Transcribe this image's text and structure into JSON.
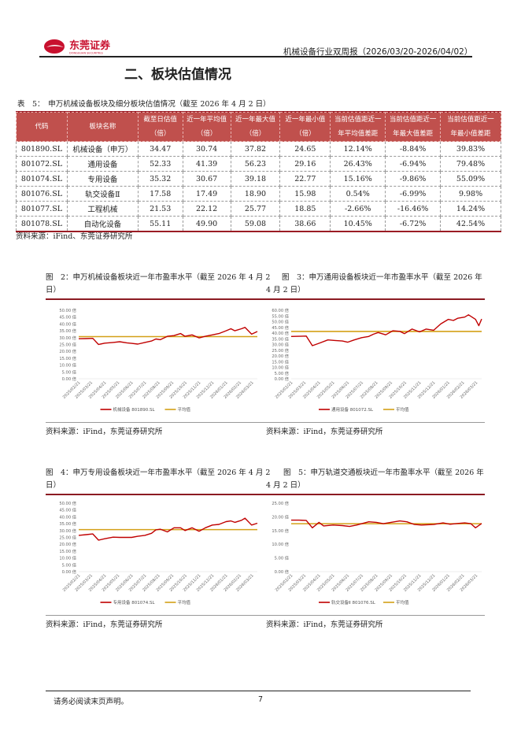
{
  "header": {
    "logo_text": "东莞证券",
    "logo_subtext": "DONGGUAN SECURITIES",
    "report_title": "机械设备行业双周报（2026/03/20-2026/04/02）"
  },
  "section_title": "二、板块估值情况",
  "table": {
    "caption": "表　5：　申万机械设备板块及细分板块估值情况（截至 2026 年 4 月 2 日）",
    "headers": [
      [
        "代码"
      ],
      [
        "板块名称"
      ],
      [
        "截至日估值",
        "（倍）"
      ],
      [
        "近一年平均值",
        "（倍）"
      ],
      [
        "近一年最大值",
        "（倍）"
      ],
      [
        "近一年最小值",
        "（倍）"
      ],
      [
        "当前估值距近一",
        "年平均值差距"
      ],
      [
        "当前估值距近一",
        "年最大值差距"
      ],
      [
        "当前估值距近一",
        "年最小值差距"
      ]
    ],
    "rows": [
      [
        "801890.SL",
        "机械设备（申万）",
        "34.47",
        "30.74",
        "37.82",
        "24.65",
        "12.14%",
        "-8.84%",
        "39.83%"
      ],
      [
        "801072.SL",
        "通用设备",
        "52.33",
        "41.39",
        "56.23",
        "29.16",
        "26.43%",
        "-6.94%",
        "79.48%"
      ],
      [
        "801074.SL",
        "专用设备",
        "35.32",
        "30.67",
        "39.18",
        "22.77",
        "15.16%",
        "-9.86%",
        "55.09%"
      ],
      [
        "801076.SL",
        "轨交设备Ⅱ",
        "17.58",
        "17.49",
        "18.90",
        "15.98",
        "0.54%",
        "-6.99%",
        "9.98%"
      ],
      [
        "801077.SL",
        "工程机械",
        "21.53",
        "22.12",
        "25.77",
        "18.85",
        "-2.66%",
        "-16.46%",
        "14.24%"
      ],
      [
        "801078.SL",
        "自动化设备",
        "55.11",
        "49.90",
        "59.08",
        "38.66",
        "10.45%",
        "-6.72%",
        "42.54%"
      ]
    ],
    "source": "资料来源：iFind、东莞证券研究所"
  },
  "figures": [
    {
      "caption": "图　2：申万机械设备板块近一年市盈率水平（截至 2026 年 4 月 2 日）",
      "source": "资料来源：iFind，东莞证券研究所"
    },
    {
      "caption": "图　3：申万通用设备板块近一年市盈率水平（截至 2026 年 4 月 2 日）",
      "source": "资料来源：iFind，东莞证券研究所"
    },
    {
      "caption": "图　4：申万专用设备板块近一年市盈率水平（截至 2026 年 4 月 2 日）",
      "source": "资料来源：iFind，东莞证券研究所"
    },
    {
      "caption": "图　5：申万轨道交通板块近一年市盈率水平（截至 2026 年 4 月 2 日）",
      "source": "资料来源：iFind，东莞证券研究所"
    }
  ],
  "colors": {
    "series": "#c00000",
    "average": "#d4a017",
    "table_header": "#c0504d",
    "rule": "#8b1a22"
  },
  "chart_data": [
    {
      "type": "line",
      "x_tick_labels": [
        "2025/02/21",
        "2025/03/21",
        "2025/04/21",
        "2025/05/21",
        "2025/06/21",
        "2025/07/21",
        "2025/08/21",
        "2025/09/21",
        "2025/10/21",
        "2025/11/21",
        "2025/12/21",
        "2026/01/21",
        "2026/02/21",
        "2026/03/21"
      ],
      "y_tick_labels": [
        "0.00 倍",
        "5.00 倍",
        "10.00 倍",
        "15.00 倍",
        "20.00 倍",
        "25.00 倍",
        "30.00 倍",
        "35.00 倍",
        "40.00 倍",
        "45.00 倍",
        "50.00 倍"
      ],
      "ylim": [
        0,
        50
      ],
      "grid": false,
      "legend": "bottom",
      "series": [
        {
          "name": "机械设备 801890.SL",
          "x": [
            "2025/02/21",
            "2025/03/10",
            "2025/03/25",
            "2025/04/07",
            "2025/04/21",
            "2025/05/10",
            "2025/05/25",
            "2025/06/10",
            "2025/06/21",
            "2025/07/05",
            "2025/07/21",
            "2025/08/05",
            "2025/08/15",
            "2025/08/25",
            "2025/09/10",
            "2025/09/25",
            "2025/10/10",
            "2025/10/20",
            "2025/11/05",
            "2025/11/21",
            "2025/12/05",
            "2025/12/21",
            "2026/01/05",
            "2026/01/21",
            "2026/02/01",
            "2026/02/10",
            "2026/02/25",
            "2026/03/05",
            "2026/03/20",
            "2026/04/02"
          ],
          "values": [
            29.2,
            29.3,
            29.5,
            25,
            26,
            26.5,
            27,
            26.2,
            25.8,
            25.3,
            26.5,
            27.5,
            29,
            28.5,
            31,
            31.5,
            33,
            31,
            32,
            29.8,
            31,
            32,
            33,
            35,
            36.5,
            35,
            36.5,
            37.5,
            32.5,
            34.47
          ]
        },
        {
          "name": "平均值",
          "values": [
            30.74
          ]
        }
      ]
    },
    {
      "type": "line",
      "x_tick_labels": [
        "2025/02/21",
        "2025/03/21",
        "2025/04/21",
        "2025/05/21",
        "2025/06/21",
        "2025/07/21",
        "2025/08/21",
        "2025/09/21",
        "2025/10/21",
        "2025/11/21",
        "2025/12/21",
        "2026/01/21",
        "2026/02/21",
        "2026/03/21"
      ],
      "y_tick_labels": [
        "0.00 倍",
        "5.00 倍",
        "10.00 倍",
        "15.00 倍",
        "20.00 倍",
        "25.00 倍",
        "30.00 倍",
        "35.00 倍",
        "40.00 倍",
        "45.00 倍",
        "50.00 倍",
        "55.00 倍",
        "60.00 倍"
      ],
      "ylim": [
        0,
        60
      ],
      "grid": false,
      "legend": "bottom",
      "series": [
        {
          "name": "通用设备 801072.SL",
          "x": [
            "2025/02/21",
            "2025/03/10",
            "2025/03/25",
            "2025/04/07",
            "2025/04/21",
            "2025/05/10",
            "2025/05/25",
            "2025/06/10",
            "2025/06/21",
            "2025/07/05",
            "2025/07/21",
            "2025/08/05",
            "2025/08/15",
            "2025/08/25",
            "2025/09/10",
            "2025/09/25",
            "2025/10/10",
            "2025/10/20",
            "2025/11/05",
            "2025/11/21",
            "2025/12/05",
            "2025/12/21",
            "2026/01/05",
            "2026/01/21",
            "2026/02/01",
            "2026/02/10",
            "2026/02/25",
            "2026/03/05",
            "2026/03/20",
            "2026/03/27",
            "2026/04/02"
          ],
          "values": [
            37,
            37.2,
            37.4,
            29,
            31,
            34,
            33.5,
            33,
            32,
            34,
            36,
            37,
            39,
            40.5,
            38.5,
            42,
            41.5,
            39.5,
            43.5,
            41,
            43.5,
            42.5,
            48,
            52,
            51,
            53,
            54,
            56,
            52,
            46.5,
            52.33
          ]
        },
        {
          "name": "平均值",
          "values": [
            41.39
          ]
        }
      ]
    },
    {
      "type": "line",
      "x_tick_labels": [
        "2025/02/21",
        "2025/03/21",
        "2025/04/21",
        "2025/05/21",
        "2025/06/21",
        "2025/07/21",
        "2025/08/21",
        "2025/09/21",
        "2025/10/21",
        "2025/11/21",
        "2025/12/21",
        "2026/01/21",
        "2026/02/21",
        "2026/03/21"
      ],
      "y_tick_labels": [
        "0.00 倍",
        "5.00 倍",
        "10.00 倍",
        "15.00 倍",
        "20.00 倍",
        "25.00 倍",
        "30.00 倍",
        "35.00 倍",
        "40.00 倍",
        "45.00 倍",
        "50.00 倍"
      ],
      "ylim": [
        0,
        50
      ],
      "grid": false,
      "legend": "bottom",
      "series": [
        {
          "name": "专用设备 801074.SL",
          "x": [
            "2025/02/21",
            "2025/03/10",
            "2025/03/25",
            "2025/04/07",
            "2025/04/21",
            "2025/05/10",
            "2025/05/25",
            "2025/06/10",
            "2025/06/21",
            "2025/07/05",
            "2025/07/21",
            "2025/08/05",
            "2025/08/15",
            "2025/08/25",
            "2025/09/10",
            "2025/09/25",
            "2025/10/10",
            "2025/10/20",
            "2025/11/05",
            "2025/11/21",
            "2025/12/05",
            "2025/12/21",
            "2026/01/05",
            "2026/01/21",
            "2026/02/01",
            "2026/02/10",
            "2026/02/25",
            "2026/03/05",
            "2026/03/20",
            "2026/04/02"
          ],
          "values": [
            26.5,
            27,
            27.5,
            23,
            24,
            25.2,
            25,
            25,
            25,
            25.8,
            26.5,
            28,
            30.5,
            31,
            29,
            32,
            32,
            30,
            32,
            29.5,
            32,
            34,
            34.5,
            36.5,
            37,
            36,
            37.5,
            39,
            34,
            35.32
          ]
        },
        {
          "name": "平均值",
          "values": [
            30.67
          ]
        }
      ]
    },
    {
      "type": "line",
      "x_tick_labels": [
        "2025/02/21",
        "2025/03/21",
        "2025/04/21",
        "2025/05/21",
        "2025/06/21",
        "2025/07/21",
        "2025/08/21",
        "2025/09/21",
        "2025/10/21",
        "2025/11/21",
        "2025/12/21",
        "2026/01/21",
        "2026/02/21",
        "2026/03/21"
      ],
      "y_tick_labels": [
        "0.00 倍",
        "5.00 倍",
        "10.00 倍",
        "15.00 倍",
        "20.00 倍",
        "25.00 倍"
      ],
      "ylim": [
        0,
        25
      ],
      "grid": false,
      "legend": "bottom",
      "series": [
        {
          "name": "轨交设备Ⅱ 801076.SL",
          "x": [
            "2025/02/21",
            "2025/03/10",
            "2025/03/25",
            "2025/04/07",
            "2025/04/21",
            "2025/05/01",
            "2025/05/21",
            "2025/06/10",
            "2025/06/25",
            "2025/07/10",
            "2025/07/21",
            "2025/08/05",
            "2025/08/21",
            "2025/09/05",
            "2025/09/21",
            "2025/10/10",
            "2025/10/25",
            "2025/11/10",
            "2025/11/25",
            "2025/12/21",
            "2026/01/10",
            "2026/01/25",
            "2026/02/10",
            "2026/02/25",
            "2026/03/10",
            "2026/03/20",
            "2026/04/02"
          ],
          "values": [
            18.8,
            18.8,
            18.7,
            16,
            18,
            16.7,
            17,
            16.8,
            16.5,
            17,
            17.5,
            18.2,
            18,
            17.5,
            18,
            18.5,
            18.2,
            17.2,
            17,
            17.2,
            17.8,
            17.3,
            17.6,
            17.8,
            17.5,
            16,
            17.58
          ]
        },
        {
          "name": "平均值",
          "values": [
            17.49
          ]
        }
      ]
    }
  ],
  "footer": {
    "disclaimer": "请务必阅读末页声明。",
    "page_number": "7"
  }
}
